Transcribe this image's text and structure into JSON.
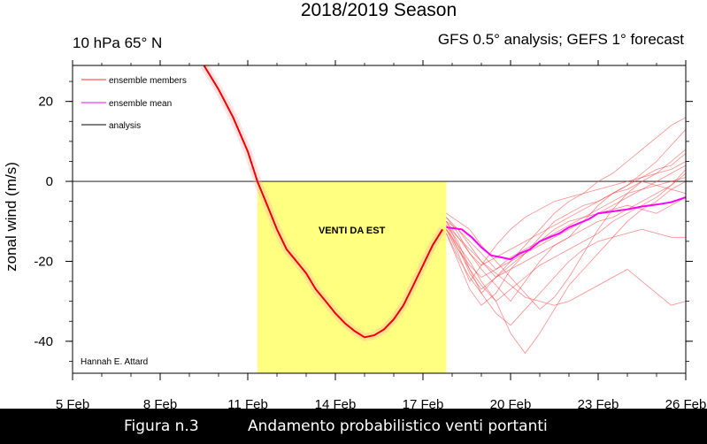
{
  "chart_data": {
    "type": "line",
    "title": "2018/2019 Season",
    "subtitle_left": "10 hPa 65° N",
    "subtitle_right": "GFS 0.5° analysis; GEFS 1° forecast",
    "ylabel": "zonal wind (m/s)",
    "xlabel": "",
    "xlim": [
      5,
      26
    ],
    "ylim": [
      -48,
      29
    ],
    "x_ticks": [
      {
        "x": 5,
        "label": "5 Feb"
      },
      {
        "x": 8,
        "label": "8 Feb"
      },
      {
        "x": 11,
        "label": "11 Feb"
      },
      {
        "x": 14,
        "label": "14 Feb"
      },
      {
        "x": 17,
        "label": "17 Feb"
      },
      {
        "x": 20,
        "label": "20 Feb"
      },
      {
        "x": 23,
        "label": "23 Feb"
      },
      {
        "x": 26,
        "label": "26 Feb"
      }
    ],
    "y_ticks": [
      {
        "y": 20,
        "label": "20"
      },
      {
        "y": 0,
        "label": "0"
      },
      {
        "y": -20,
        "label": "-20"
      },
      {
        "y": -40,
        "label": "-40"
      }
    ],
    "shaded_region": {
      "x_start": 11.33,
      "x_end": 17.8,
      "y_start": 0,
      "y_end": -48,
      "color": "#ffff80",
      "label": "VENTI DA EST"
    },
    "zero_line": 0,
    "legend": {
      "placement": "top-left",
      "entries": [
        {
          "label": "ensemble members",
          "color": "#ff3030"
        },
        {
          "label": "ensemble mean",
          "color": "#ff00ff"
        },
        {
          "label": "analysis",
          "color": "#000000"
        }
      ]
    },
    "credit": "Hannah E. Attard",
    "series": [
      {
        "name": "analysis",
        "color": "#ee0000",
        "x": [
          9.5,
          10,
          10.5,
          11,
          11.33,
          11.67,
          12,
          12.33,
          12.67,
          13,
          13.33,
          13.67,
          14,
          14.33,
          14.67,
          15,
          15.33,
          15.67,
          16,
          16.33,
          16.67,
          17,
          17.33,
          17.67
        ],
        "y": [
          29,
          23,
          16,
          7.5,
          0,
          -6,
          -12,
          -17,
          -20,
          -23,
          -27,
          -30,
          -33,
          -35.5,
          -37.5,
          -39,
          -38.5,
          -37,
          -34.5,
          -31,
          -26,
          -21,
          -16,
          -12
        ]
      },
      {
        "name": "ensemble mean",
        "color": "#ff00ff",
        "x": [
          17.8,
          18.33,
          18.67,
          19,
          19.33,
          19.67,
          20,
          20.33,
          20.67,
          21,
          21.33,
          21.67,
          22,
          22.33,
          22.67,
          23,
          23.5,
          24,
          24.5,
          25,
          25.5,
          26
        ],
        "y": [
          -11.5,
          -12,
          -14,
          -16.5,
          -18.5,
          -19,
          -19.5,
          -18,
          -17,
          -15,
          -14,
          -13,
          -11.5,
          -10.5,
          -9.5,
          -8,
          -7.5,
          -7,
          -6.3,
          -5.8,
          -5.2,
          -4
        ]
      }
    ],
    "ensemble_members": [
      [
        -11,
        -17,
        -22,
        -28,
        -24,
        -20,
        -16,
        -12,
        -8,
        -5,
        -3,
        0,
        2,
        5,
        8,
        11,
        14,
        16
      ],
      [
        -9,
        -13,
        -18,
        -22,
        -26,
        -30,
        -25,
        -20,
        -16,
        -14,
        -10,
        -6,
        -3,
        -1,
        1,
        3,
        4,
        7
      ],
      [
        -13,
        -20,
        -27,
        -31,
        -28,
        -22,
        -18,
        -14,
        -10,
        -8,
        -6,
        -5,
        -3,
        -2,
        0,
        -1,
        -2,
        -3
      ],
      [
        -8,
        -10,
        -12,
        -16,
        -20,
        -24,
        -28,
        -32,
        -29,
        -24,
        -18,
        -12,
        -7,
        -3,
        0,
        2,
        5,
        8
      ],
      [
        -12,
        -16,
        -20,
        -25,
        -30,
        -38,
        -43,
        -38,
        -32,
        -26,
        -22,
        -18,
        -14,
        -10,
        -7,
        -5,
        -2,
        0
      ],
      [
        -10,
        -14,
        -18,
        -21,
        -19,
        -17,
        -15,
        -13,
        -11,
        -9,
        -7,
        -5,
        -3,
        -1,
        2,
        5,
        9,
        13
      ],
      [
        -11,
        -15,
        -22,
        -26,
        -30,
        -27,
        -24,
        -21,
        -19,
        -17,
        -15,
        -13,
        -10,
        -8,
        -6,
        -4,
        -1,
        3
      ],
      [
        -9,
        -12,
        -15,
        -18,
        -22,
        -20,
        -18,
        -15,
        -12,
        -10,
        -9,
        -8,
        -7,
        -6,
        -7,
        -8,
        -6,
        -4
      ],
      [
        -12,
        -18,
        -25,
        -21,
        -16,
        -12,
        -9,
        -7,
        -5,
        -4,
        -3,
        -2,
        -1,
        0,
        1,
        2,
        3,
        5
      ],
      [
        -10,
        -16,
        -23,
        -27,
        -24,
        -21,
        -18,
        -16,
        -14,
        -12,
        -10,
        -8,
        -6,
        -4,
        -2,
        0,
        2,
        4
      ],
      [
        -13,
        -19,
        -24,
        -28,
        -33,
        -36,
        -32,
        -28,
        -24,
        -20,
        -17,
        -15,
        -14,
        -13,
        -12,
        -13,
        -14,
        -14
      ],
      [
        -11,
        -14,
        -17,
        -20,
        -23,
        -26,
        -29,
        -30,
        -31,
        -30,
        -28,
        -26,
        -24,
        -22,
        -25,
        -28,
        -31,
        -30
      ],
      [
        -10,
        -12,
        -16,
        -20,
        -24,
        -22,
        -20,
        -18,
        -16,
        -14,
        -12,
        -10,
        -9,
        -7,
        -5,
        -3,
        -1,
        2
      ],
      [
        -12,
        -17,
        -21,
        -24,
        -22,
        -19,
        -17,
        -15,
        -13,
        -11,
        -9,
        -7,
        -5,
        -3,
        -2,
        -1,
        0,
        1
      ]
    ],
    "ensemble_x": [
      17.8,
      18.2,
      18.6,
      19,
      19.5,
      20,
      20.5,
      21,
      21.5,
      22,
      22.5,
      23,
      23.5,
      24,
      24.5,
      25,
      25.5,
      26
    ],
    "ensemble_color": "#ff4040"
  },
  "caption": {
    "figure_label": "Figura n.3",
    "text": "Andamento probabilistico venti portanti"
  }
}
